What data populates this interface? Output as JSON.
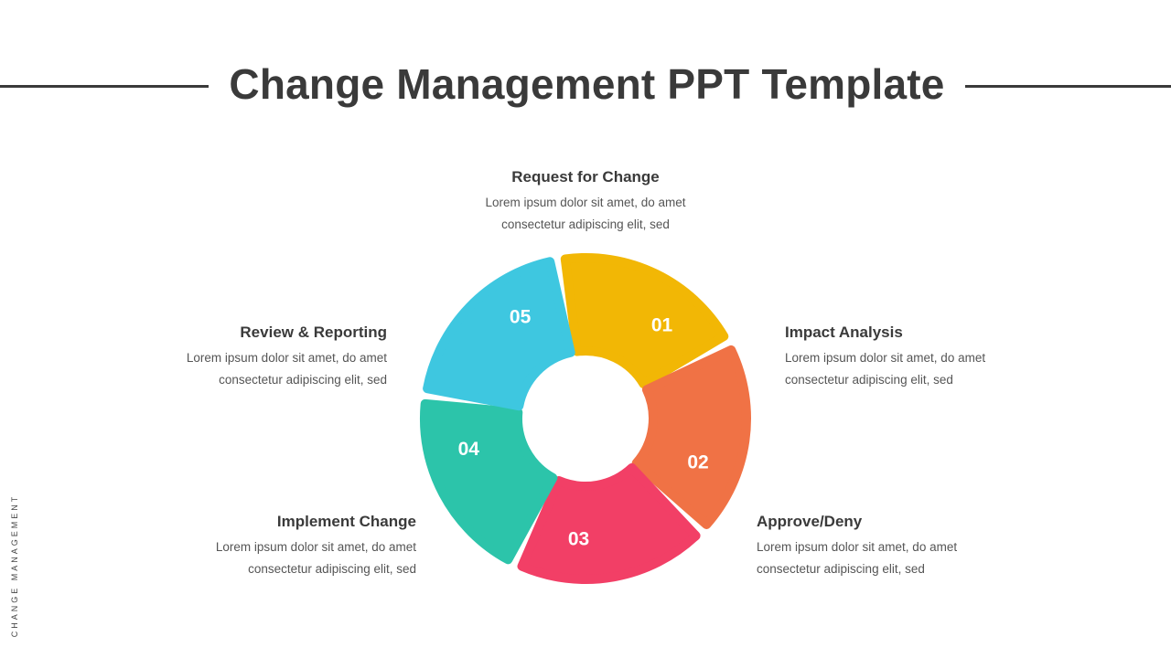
{
  "title": "Change Management PPT Template",
  "side_label": "CHANGE MANAGEMENT",
  "steps": [
    {
      "number": "01",
      "heading": "Request for Change",
      "line1": "Lorem ipsum dolor sit amet, do amet",
      "line2": "consectetur adipiscing elit, sed",
      "color": "#F2B705"
    },
    {
      "number": "02",
      "heading": "Impact Analysis",
      "line1": "Lorem ipsum dolor sit amet, do amet",
      "line2": "consectetur adipiscing elit, sed",
      "color": "#F07245"
    },
    {
      "number": "03",
      "heading": "Approve/Deny",
      "line1": "Lorem ipsum dolor sit amet, do amet",
      "line2": "consectetur adipiscing elit, sed",
      "color": "#F23F66"
    },
    {
      "number": "04",
      "heading": "Implement Change",
      "line1": "Lorem ipsum dolor sit amet, do amet",
      "line2": "consectetur adipiscing elit, sed",
      "color": "#2CC4AA"
    },
    {
      "number": "05",
      "heading": "Review & Reporting",
      "line1": "Lorem ipsum dolor sit amet, do amet",
      "line2": "consectetur adipiscing elit, sed",
      "color": "#3EC7E0"
    }
  ]
}
